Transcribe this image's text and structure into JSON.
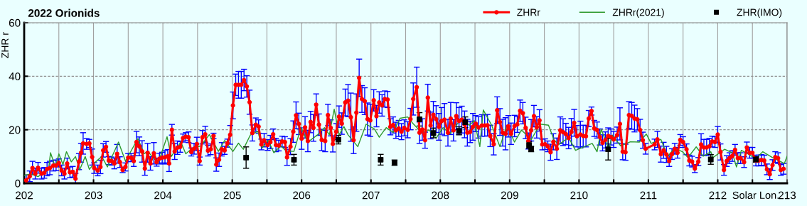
{
  "chart_data": {
    "type": "line",
    "title": "2022 Orionids",
    "xlabel": "Solar Lon.",
    "ylabel": "ZHR r",
    "xlim": [
      202,
      213
    ],
    "ylim": [
      0,
      60
    ],
    "xticks": [
      202,
      {
        "value": 202.5,
        "label": null
      },
      203,
      {
        "value": 203.5,
        "label": null
      },
      204,
      {
        "value": 204.5,
        "label": null
      },
      205,
      {
        "value": 205.5,
        "label": null
      },
      206,
      {
        "value": 206.5,
        "label": null
      },
      207,
      {
        "value": 207.5,
        "label": null
      },
      208,
      {
        "value": 208.5,
        "label": null
      },
      209,
      {
        "value": 209.5,
        "label": null
      },
      210,
      {
        "value": 210.5,
        "label": null
      },
      211,
      {
        "value": 211.5,
        "label": null
      },
      212,
      {
        "value": 212.5,
        "label": null
      },
      213
    ],
    "yticks": [
      0,
      20,
      40,
      60
    ],
    "grid": true,
    "legend": "top right",
    "series": [
      {
        "name": "ZHRr",
        "color": "#ff0000",
        "marker": "circle",
        "line_style": "solid",
        "x": [
          202.03,
          202.08,
          202.12,
          202.16,
          202.2,
          202.25,
          202.29,
          202.33,
          202.37,
          202.42,
          202.46,
          202.5,
          202.54,
          202.58,
          202.62,
          202.66,
          202.7,
          202.74,
          202.79,
          202.82,
          202.85,
          202.9,
          202.94,
          202.98,
          203.01,
          203.06,
          203.1,
          203.14,
          203.18,
          203.22,
          203.26,
          203.3,
          203.34,
          203.38,
          203.42,
          203.46,
          203.5,
          203.54,
          203.58,
          203.62,
          203.66,
          203.7,
          203.74,
          203.78,
          203.82,
          203.87,
          203.91,
          203.95,
          203.99,
          204.03,
          204.07,
          204.09,
          204.13,
          204.17,
          204.21,
          204.25,
          204.29,
          204.33,
          204.37,
          204.41,
          204.45,
          204.49,
          204.53,
          204.57,
          204.61,
          204.65,
          204.69,
          204.73,
          204.77,
          204.81,
          204.85,
          204.89,
          204.93,
          204.97,
          205.01,
          205.05,
          205.09,
          205.13,
          205.17,
          205.21,
          205.25,
          205.29,
          205.34,
          205.38,
          205.42,
          205.46,
          205.51,
          205.55,
          205.59,
          205.63,
          205.67,
          205.72,
          205.76,
          205.79,
          205.84,
          205.88,
          205.92,
          205.96,
          206.0,
          206.05,
          206.09,
          206.13,
          206.17,
          206.21,
          206.25,
          206.29,
          206.34,
          206.38,
          206.42,
          206.45,
          206.5,
          206.54,
          206.58,
          206.63,
          206.67,
          206.71,
          206.75,
          206.79,
          206.83,
          206.87,
          206.91,
          206.95,
          206.99,
          207.04,
          207.08,
          207.12,
          207.16,
          207.2,
          207.24,
          207.28,
          207.32,
          207.36,
          207.4,
          207.44,
          207.48,
          207.53,
          207.57,
          207.61,
          207.66,
          207.7,
          207.74,
          207.78,
          207.82,
          207.86,
          207.9,
          207.94,
          207.98,
          208.02,
          208.06,
          208.11,
          208.15,
          208.19,
          208.23,
          208.27,
          208.31,
          208.35,
          208.39,
          208.43,
          208.47,
          208.51,
          208.55,
          208.6,
          208.64,
          208.68,
          208.72,
          208.77,
          208.82,
          208.86,
          208.9,
          208.94,
          208.98,
          209.02,
          209.07,
          209.11,
          209.15,
          209.19,
          209.23,
          209.27,
          209.31,
          209.35,
          209.39,
          209.43,
          209.47,
          209.51,
          209.55,
          209.59,
          209.63,
          209.68,
          209.73,
          209.77,
          209.81,
          209.85,
          209.89,
          209.93,
          209.97,
          210.02,
          210.06,
          210.1,
          210.14,
          210.18,
          210.22,
          210.26,
          210.3,
          210.34,
          210.38,
          210.42,
          210.46,
          210.5,
          210.55,
          210.59,
          210.63,
          210.67,
          210.72,
          210.76,
          210.8,
          210.84,
          210.88,
          210.92,
          210.96,
          211.09,
          211.13,
          211.18,
          211.22,
          211.26,
          211.3,
          211.34,
          211.38,
          211.42,
          211.46,
          211.5,
          211.55,
          211.59,
          211.63,
          211.67,
          211.72,
          211.76,
          211.8,
          211.84,
          211.88,
          211.92,
          211.96,
          212.0,
          212.04,
          212.09,
          212.13,
          212.17,
          212.21,
          212.25,
          212.29,
          212.33,
          212.38,
          212.42,
          212.46,
          212.5,
          212.55,
          212.59,
          212.63,
          212.67,
          212.71,
          212.75,
          212.79,
          212.83,
          212.87,
          212.91,
          212.95
        ],
        "values": [
          1.1,
          2.6,
          5.7,
          3.6,
          5.8,
          3.6,
          3.9,
          5.3,
          5.7,
          6.6,
          6.7,
          7.6,
          4.8,
          3.6,
          7.4,
          4.1,
          4.3,
          1.7,
          8.1,
          11.4,
          14.9,
          14.7,
          14.9,
          9.8,
          5.7,
          4.8,
          6.1,
          12.3,
          13.6,
          8.5,
          8.3,
          7.4,
          11,
          7.9,
          5,
          6.1,
          9.6,
          9.6,
          8.3,
          15.4,
          13.8,
          11.9,
          5.5,
          11.4,
          7.4,
          11.2,
          7.9,
          9.2,
          9.6,
          9.7,
          10.1,
          7.4,
          20,
          11.9,
          13.3,
          13.6,
          16.9,
          17.4,
          17.2,
          11.7,
          12.9,
          14.7,
          8.3,
          17.2,
          18.3,
          12.2,
          12.7,
          17.7,
          7,
          8.8,
          12.7,
          12.3,
          15,
          18.1,
          29.1,
          36.8,
          36.8,
          36.8,
          38.6,
          36.2,
          30.3,
          18.8,
          21.9,
          21.2,
          14.5,
          16.1,
          14.3,
          15.4,
          18.3,
          14.3,
          14.1,
          15.6,
          15.4,
          9.7,
          13.7,
          19.3,
          25.4,
          22.2,
          16.7,
          20.9,
          15.8,
          22.9,
          20.7,
          29.4,
          21.9,
          16.2,
          15.8,
          25.5,
          20.7,
          14.7,
          19.3,
          24.9,
          22.3,
          30.2,
          30.9,
          24.7,
          16.1,
          26.4,
          39.4,
          31.5,
          30.7,
          24,
          23.5,
          31,
          25.1,
          30.2,
          29.1,
          31.5,
          31.3,
          21.1,
          21.8,
          19.8,
          20.5,
          19.3,
          20.7,
          20,
          24,
          31.5,
          35.9,
          18.9,
          20.1,
          16.1,
          32,
          21.6,
          25.6,
          24,
          21.1,
          23.3,
          23.8,
          18.9,
          24.2,
          19.8,
          25.1,
          23.3,
          23.8,
          22,
          18.9,
          19.2,
          21.1,
          22.3,
          20.9,
          21.6,
          21.6,
          21.7,
          17.7,
          14.6,
          27.3,
          22.9,
          18.9,
          18.5,
          21.3,
          18.5,
          21.4,
          22,
          27.1,
          26.2,
          20.7,
          15.8,
          19.8,
          25.1,
          20.9,
          23.5,
          14.5,
          14.6,
          13.8,
          11.6,
          15.5,
          12.9,
          19.8,
          19.1,
          18.4,
          16.9,
          19.2,
          22.6,
          17.6,
          18.2,
          17.7,
          17.6,
          24.2,
          27,
          20.5,
          19.9,
          17.3,
          15.1,
          16.2,
          17.7,
          17.3,
          16.4,
          18,
          22.2,
          11.8,
          11.6,
          25.5,
          25.2,
          24.2,
          23.9,
          19.9,
          16.1,
          12.9,
          14.5,
          16.4,
          10.9,
          12.3,
          10.8,
          8.3,
          10.9,
          12.9,
          11.4,
          16.2,
          15.4,
          12.7,
          8.5,
          8.1,
          5.5,
          8.1,
          14.5,
          13.4,
          13.4,
          13.8,
          15.6,
          15.4,
          18.2,
          11.7,
          5,
          8.3,
          9.4,
          10.2,
          12.5,
          9.4,
          9.4,
          7.9,
          13.4,
          11.4,
          11.4,
          8.5,
          8.5,
          8.7,
          8.5,
          5.2,
          3.4,
          6.8,
          9.8,
          9.4,
          5,
          5.4
        ],
        "errors": [
          2,
          2,
          2.5,
          2,
          2,
          2,
          2,
          2.5,
          2.5,
          2,
          2,
          1.5,
          2,
          2,
          2,
          2,
          2,
          2,
          3,
          3.5,
          4,
          2,
          1.5,
          3,
          2,
          2,
          2.5,
          2.5,
          2,
          1.5,
          1.5,
          2,
          3.5,
          2,
          1,
          1.5,
          1.5,
          1.5,
          2,
          4,
          3.5,
          4,
          2.5,
          3.5,
          2.5,
          4,
          1.5,
          2,
          2,
          2.5,
          2.5,
          3,
          2,
          3,
          2.5,
          2,
          1.5,
          1.5,
          2,
          1.5,
          2,
          2.5,
          1.5,
          2.5,
          3,
          2,
          2,
          1,
          2.5,
          2.5,
          2.5,
          1.5,
          1.5,
          3.5,
          5,
          4,
          5,
          5,
          4,
          4,
          4.5,
          3,
          2.5,
          2.5,
          2,
          2.5,
          2,
          2.5,
          2,
          2.5,
          2,
          2,
          2,
          3,
          3,
          4,
          5,
          4,
          4,
          4,
          4,
          4,
          5,
          4,
          4,
          4,
          4,
          4,
          3,
          3,
          3,
          4,
          4,
          5,
          6,
          9,
          5,
          7,
          7,
          5,
          5,
          6,
          6,
          4,
          4,
          4,
          4,
          3,
          3,
          3,
          3,
          3,
          3,
          3,
          3,
          3,
          4,
          6,
          7.5,
          4,
          4,
          3,
          5,
          5,
          5,
          5,
          5,
          5,
          6,
          5,
          6,
          4,
          5,
          5,
          5,
          5,
          5,
          4,
          5,
          3,
          4,
          4,
          4,
          4,
          4,
          4,
          5,
          5,
          5,
          6,
          4,
          4,
          4,
          3,
          4,
          4,
          4,
          3,
          4,
          4,
          4,
          4,
          2,
          2,
          2,
          3,
          3,
          4,
          5,
          5,
          4,
          4,
          5,
          5,
          4,
          5,
          4,
          4,
          3,
          1.5,
          3,
          3,
          3,
          3,
          3,
          3,
          3,
          3,
          3,
          6,
          3,
          3,
          5,
          5,
          5,
          4,
          4,
          3,
          2,
          2,
          3,
          3,
          3,
          3,
          2,
          2,
          2,
          2,
          2,
          2,
          2,
          2,
          2,
          1.5,
          1.5,
          4,
          3,
          3,
          3,
          2,
          2,
          3,
          3,
          2,
          2,
          2,
          2,
          2,
          2,
          2,
          2,
          2,
          2,
          2,
          2,
          2,
          2,
          2,
          2,
          2,
          2,
          2,
          2,
          2,
          2
        ]
      },
      {
        "name": "ZHRr(2021)",
        "color": "#2e9a2e",
        "line_style": "solid",
        "x": [
          202.0,
          202.1,
          202.2,
          202.35,
          202.38,
          202.45,
          202.5,
          202.56,
          202.61,
          202.68,
          202.74,
          202.8,
          202.88,
          202.94,
          203.03,
          203.12,
          203.2,
          203.36,
          203.46,
          203.64,
          203.73,
          203.78,
          203.93,
          204.06,
          204.12,
          204.26,
          204.33,
          204.42,
          204.55,
          204.67,
          204.8,
          204.89,
          205.01,
          205.09,
          205.16,
          205.26,
          205.37,
          205.43,
          205.52,
          205.6,
          205.7,
          205.78,
          205.89,
          205.99,
          206.09,
          206.23,
          206.33,
          206.4,
          206.47,
          206.54,
          206.61,
          206.67,
          206.81,
          206.93,
          207.05,
          207.12,
          207.22,
          207.32,
          207.42,
          207.53,
          207.6,
          207.73,
          207.84,
          207.94,
          208.04,
          208.14,
          208.28,
          208.42,
          208.49,
          208.57,
          208.62,
          208.74,
          208.86,
          208.96,
          209.07,
          209.17,
          209.31,
          209.44,
          209.56,
          209.64,
          209.71,
          209.85,
          209.95,
          210.03,
          210.19,
          210.26,
          210.32,
          210.43,
          210.48,
          210.6,
          210.74,
          210.87,
          210.97,
          211.04,
          211.18,
          211.28,
          211.38,
          211.49,
          211.57,
          211.69,
          211.79,
          211.9,
          211.93,
          212.1,
          212.21,
          212.27,
          212.34,
          212.44,
          212.55,
          212.65,
          212.79,
          212.89,
          212.96,
          213.0
        ],
        "values": [
          3,
          3.5,
          2.5,
          5,
          11.4,
          6,
          11,
          7,
          11.8,
          8,
          10,
          5,
          10,
          5.2,
          8,
          10,
          6.1,
          15.4,
          8.3,
          16.7,
          11,
          12,
          7.4,
          17.4,
          10,
          15.4,
          11,
          13,
          14,
          18.2,
          11.9,
          16,
          11.9,
          15,
          12.7,
          18,
          19.4,
          13.2,
          16,
          11.4,
          14,
          12,
          11.9,
          20.8,
          15.4,
          18.1,
          20.8,
          18.1,
          27.7,
          18.1,
          21.2,
          18.1,
          13.7,
          22.1,
          20.3,
          17.2,
          20.8,
          19,
          24.3,
          24.8,
          22.5,
          19,
          19.9,
          16.8,
          20.8,
          18.5,
          23.4,
          21.7,
          23.4,
          13.7,
          27.4,
          21.7,
          13.7,
          21.7,
          15.4,
          19.9,
          16.3,
          22.1,
          21.7,
          16.2,
          14.5,
          17.1,
          12.3,
          13.2,
          14.9,
          11.8,
          20.2,
          12.7,
          18,
          14,
          15.5,
          15.4,
          18.4,
          14.9,
          16.4,
          10.1,
          13.2,
          11.8,
          9.6,
          13.6,
          10.1,
          11.8,
          9.6,
          12.7,
          11.4,
          6.1,
          12.3,
          10.9,
          9.2,
          11.8,
          9.6,
          8.3,
          7.4,
          10.1
        ]
      },
      {
        "name": "ZHR(IMO)",
        "type": "scatter",
        "color": "#000000",
        "marker": "square",
        "x": [
          205.2,
          205.89,
          206.53,
          207.14,
          207.34,
          207.7,
          207.9,
          208.27,
          208.36,
          209.28,
          209.31,
          210.42,
          211.9,
          212.55
        ],
        "values": [
          9.6,
          8.8,
          16.3,
          8.8,
          7.7,
          23.9,
          18.8,
          19.6,
          22.8,
          14.3,
          12.8,
          12.7,
          8.9,
          8.9
        ],
        "errors": [
          4,
          2,
          1.6,
          2,
          1,
          2.5,
          1.8,
          1.5,
          2,
          1.2,
          1,
          4,
          1.8,
          1
        ]
      }
    ]
  }
}
